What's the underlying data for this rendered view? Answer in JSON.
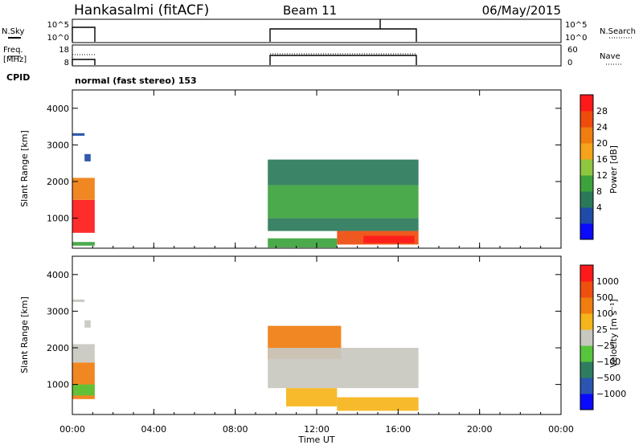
{
  "header": {
    "site": "Hankasalmi (fitACF)",
    "beam": "Beam 11",
    "date": "06/May/2015"
  },
  "status_panels": {
    "nsky_label": "N.Sky",
    "nsky_ticks": [
      "10^5",
      "10^0"
    ],
    "nsearch_label": "N.Search",
    "freq_label_1": "Freq.",
    "freq_label_2": "[MHz]",
    "freq_ticks": [
      "18",
      "8"
    ],
    "nave_ticks": [
      "60",
      "0"
    ],
    "nave_label": "Nave",
    "cpid_label": "CPID",
    "cpid_text": "normal (fast stereo) 153"
  },
  "x_axis": {
    "label": "Time UT",
    "ticks": [
      "00:00",
      "04:00",
      "08:00",
      "12:00",
      "16:00",
      "20:00",
      "00:00"
    ],
    "range_hours": [
      0,
      24
    ]
  },
  "power_colorbar": {
    "label": "Power [dB]",
    "ticks": [
      "28",
      "24",
      "20",
      "16",
      "12",
      "8",
      "4"
    ],
    "colors": [
      "#0a0aff",
      "#1f4ca8",
      "#2a7a5a",
      "#3ca33c",
      "#8ec63f",
      "#f5a31a",
      "#f07d10",
      "#ee4b0c",
      "#ff1a1a"
    ]
  },
  "velocity_colorbar": {
    "label": "Velocity [m s⁻¹]",
    "ticks": [
      "1000",
      "500",
      "100",
      "25",
      "−25",
      "−100",
      "−500",
      "−1000"
    ],
    "colors": [
      "#0a0aff",
      "#2a55b0",
      "#2e7d60",
      "#57c53b",
      "#c8c8c0",
      "#f5b41a",
      "#f07d10",
      "#ee5010",
      "#ff1a1a"
    ]
  },
  "chart_data": [
    {
      "type": "heatmap",
      "title": "Power",
      "xlabel": "Time UT",
      "ylabel": "Slant Range [km]",
      "y_ticks": [
        "1000",
        "2000",
        "3000",
        "4000"
      ],
      "xlim": [
        0,
        24
      ],
      "ylim": [
        180,
        4500
      ],
      "blocks": [
        {
          "t0": 0.0,
          "t1": 1.1,
          "r0": 600,
          "r1": 1500,
          "level": 8
        },
        {
          "t0": 0.0,
          "t1": 1.1,
          "r0": 1500,
          "r1": 2100,
          "level": 6
        },
        {
          "t0": 0.0,
          "t1": 1.1,
          "r0": 250,
          "r1": 350,
          "level": 3
        },
        {
          "t0": 0.0,
          "t1": 0.6,
          "r0": 3250,
          "r1": 3320,
          "level": 1
        },
        {
          "t0": 0.6,
          "t1": 0.9,
          "r0": 2550,
          "r1": 2750,
          "level": 1
        },
        {
          "t0": 9.6,
          "t1": 17.0,
          "r0": 1900,
          "r1": 2600,
          "level": 2
        },
        {
          "t0": 9.6,
          "t1": 17.0,
          "r0": 1000,
          "r1": 1900,
          "level": 3
        },
        {
          "t0": 9.6,
          "t1": 17.0,
          "r0": 650,
          "r1": 1000,
          "level": 2
        },
        {
          "t0": 13.0,
          "t1": 17.0,
          "r0": 280,
          "r1": 650,
          "level": 7
        },
        {
          "t0": 14.3,
          "t1": 16.8,
          "r0": 320,
          "r1": 520,
          "level": 8
        },
        {
          "t0": 9.6,
          "t1": 13.0,
          "r0": 200,
          "r1": 450,
          "level": 3
        }
      ]
    },
    {
      "type": "heatmap",
      "title": "Velocity",
      "xlabel": "Time UT",
      "ylabel": "Slant Range [km]",
      "y_ticks": [
        "1000",
        "2000",
        "3000",
        "4000"
      ],
      "xlim": [
        0,
        24
      ],
      "ylim": [
        180,
        4500
      ],
      "blocks": [
        {
          "t0": 0.0,
          "t1": 1.1,
          "r0": 600,
          "r1": 1600,
          "level": 6
        },
        {
          "t0": 0.0,
          "t1": 1.1,
          "r0": 1600,
          "r1": 2100,
          "level": 4
        },
        {
          "t0": 0.0,
          "t1": 1.1,
          "r0": 700,
          "r1": 1000,
          "level": 3
        },
        {
          "t0": 0.0,
          "t1": 0.6,
          "r0": 3250,
          "r1": 3320,
          "level": 4
        },
        {
          "t0": 0.6,
          "t1": 0.9,
          "r0": 2550,
          "r1": 2750,
          "level": 4
        },
        {
          "t0": 9.6,
          "t1": 13.2,
          "r0": 1700,
          "r1": 2600,
          "level": 6
        },
        {
          "t0": 9.6,
          "t1": 17.0,
          "r0": 900,
          "r1": 2000,
          "level": 4
        },
        {
          "t0": 13.0,
          "t1": 17.0,
          "r0": 280,
          "r1": 650,
          "level": 5
        },
        {
          "t0": 10.5,
          "t1": 13.0,
          "r0": 400,
          "r1": 900,
          "level": 5
        }
      ]
    }
  ]
}
